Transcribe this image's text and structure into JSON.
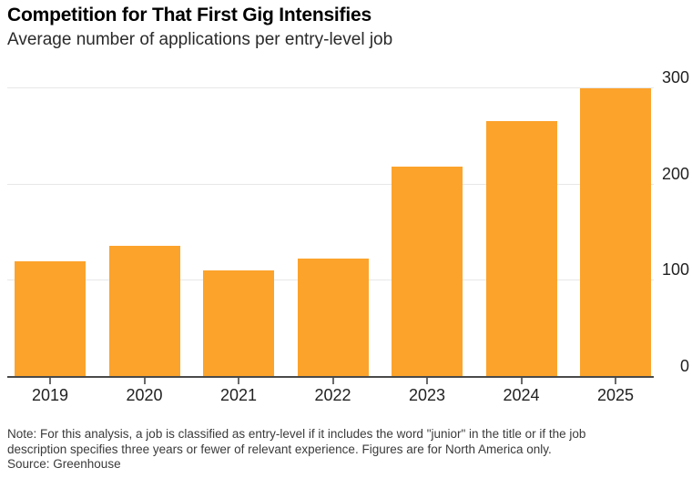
{
  "header": {
    "title": "Competition for That First Gig Intensifies",
    "subtitle": "Average number of applications per entry-level job"
  },
  "chart_data": {
    "type": "bar",
    "title": "Competition for That First Gig Intensifies",
    "subtitle": "Average number of applications per entry-level job",
    "categories": [
      "2019",
      "2020",
      "2021",
      "2022",
      "2023",
      "2024",
      "2025"
    ],
    "values": [
      119,
      135,
      110,
      122,
      218,
      265,
      299
    ],
    "xlabel": "",
    "ylabel": "",
    "ylim": [
      0,
      300
    ],
    "yticks": [
      0,
      100,
      200,
      300
    ],
    "y_axis_side": "right",
    "grid": true,
    "legend": "none",
    "bar_color": "#FCA32B"
  },
  "colors": {
    "bar": "#FCA32B",
    "gridline": "#E7E7E7",
    "axis_line": "#4A4A4A",
    "tick": "#6B6B6B",
    "title_text": "#000000",
    "subtitle_text": "#2A2A2A",
    "axis_label_text": "#222222",
    "note_text": "#3A3A3A"
  },
  "footer": {
    "note_lines": [
      "Note: For this analysis, a job is classified as entry-level if it includes the word \"junior\" in the title or if the job",
      "description specifies three years or fewer of relevant experience. Figures are for North America only."
    ],
    "source": "Source: Greenhouse"
  }
}
